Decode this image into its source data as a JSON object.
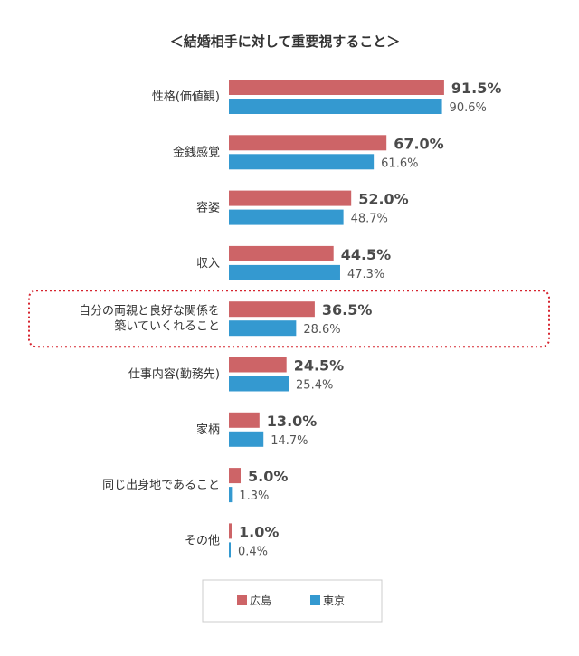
{
  "chart_data": {
    "type": "bar",
    "orientation": "horizontal",
    "title": "＜結婚相手に対して重要視すること＞",
    "unit": "%",
    "categories": [
      [
        "性格(価値観)"
      ],
      [
        "金銭感覚"
      ],
      [
        "容姿"
      ],
      [
        "収入"
      ],
      [
        "自分の両親と良好な関係を",
        "築いていくれること"
      ],
      [
        "仕事内容(勤務先)"
      ],
      [
        "家柄"
      ],
      [
        "同じ出身地であること"
      ],
      [
        "その他"
      ]
    ],
    "series": [
      {
        "name": "広島",
        "color": "#cd6467",
        "values": [
          91.5,
          67.0,
          52.0,
          44.5,
          36.5,
          24.5,
          13.0,
          5.0,
          1.0
        ]
      },
      {
        "name": "東京",
        "color": "#3499d0",
        "values": [
          90.6,
          61.6,
          48.7,
          47.3,
          28.6,
          25.4,
          14.7,
          1.3,
          0.4
        ]
      }
    ],
    "xlim": [
      0,
      100
    ],
    "grid": false,
    "legend_position": "bottom",
    "highlighted_category_index": 4,
    "highlight_color": "#d6242f"
  }
}
